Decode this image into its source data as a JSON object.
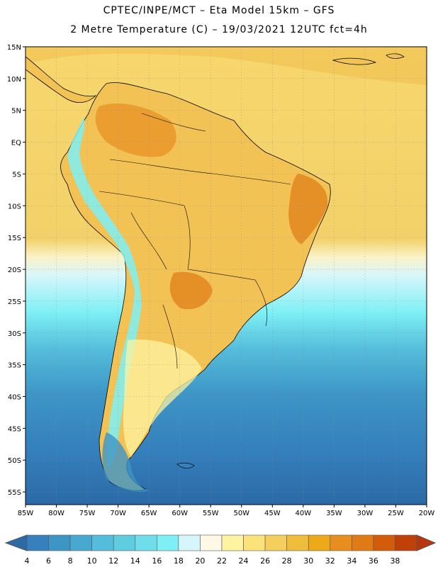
{
  "header": {
    "line1": "CPTEC/INPE/MCT –  Eta Model 15km – GFS",
    "line2": "2 Metre Temperature (C) – 19/03/2021 12UTC fct=4h"
  },
  "map": {
    "lon_labels": [
      "85W",
      "80W",
      "75W",
      "70W",
      "65W",
      "60W",
      "55W",
      "50W",
      "45W",
      "40W",
      "35W",
      "30W",
      "25W",
      "20W"
    ],
    "lat_labels": [
      "15N",
      "10N",
      "5N",
      "EQ",
      "5S",
      "10S",
      "15S",
      "20S",
      "25S",
      "30S",
      "35S",
      "40S",
      "45S",
      "50S",
      "55S"
    ],
    "lon_range": [
      -85,
      -20
    ],
    "lat_range": [
      15,
      -57
    ]
  },
  "colorbar": {
    "labels": [
      "4",
      "6",
      "8",
      "10",
      "12",
      "14",
      "16",
      "18",
      "20",
      "22",
      "24",
      "26",
      "28",
      "30",
      "32",
      "34",
      "36",
      "38"
    ],
    "colors": [
      "#2b6aa6",
      "#3580bd",
      "#3d95c6",
      "#48a9d0",
      "#55bddb",
      "#5fcde0",
      "#6fdeea",
      "#7ef0f5",
      "#d6f6fb",
      "#fff8e6",
      "#fdf3a1",
      "#fbe27a",
      "#f4cf5e",
      "#eebd3c",
      "#eda919",
      "#e88d20",
      "#e07a14",
      "#d25c0a",
      "#c0400a",
      "#b8360d"
    ]
  }
}
